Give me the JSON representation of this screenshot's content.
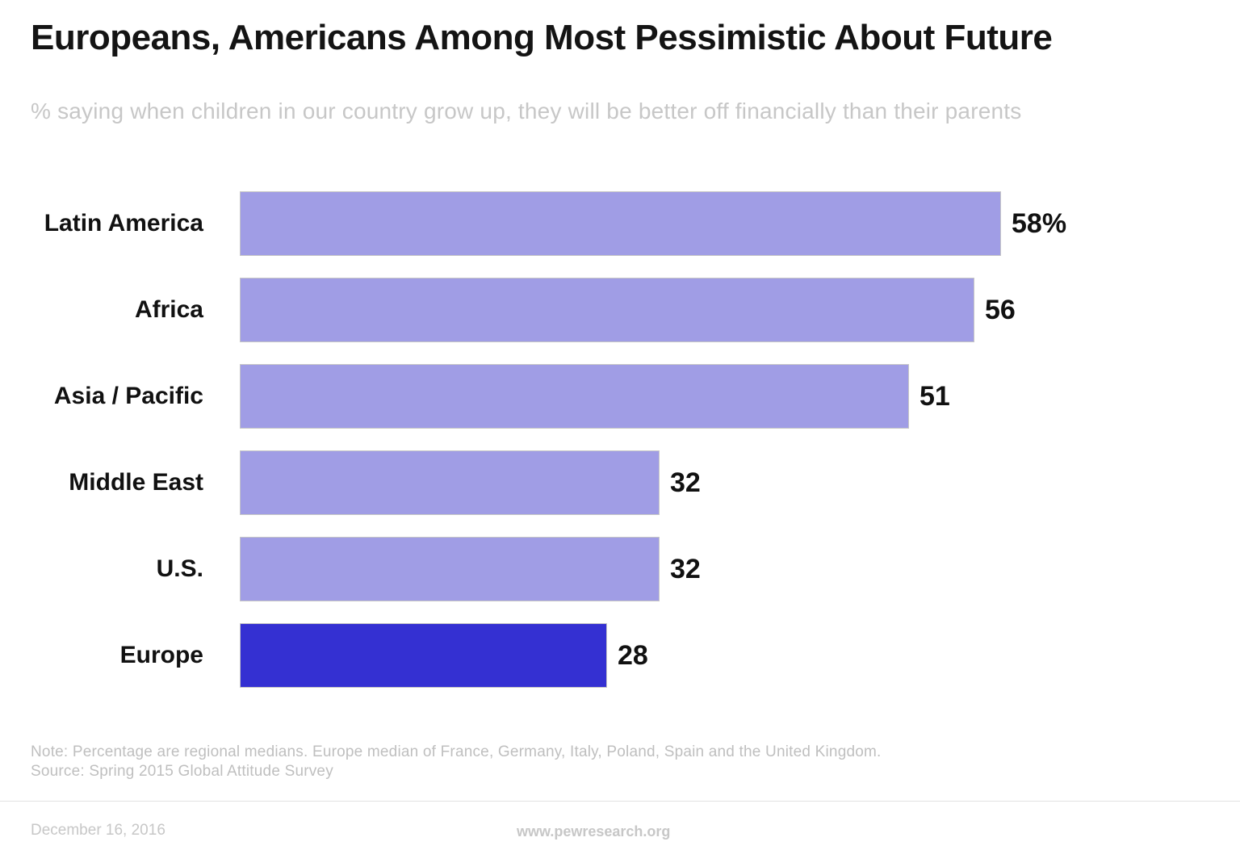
{
  "title": "Europeans, Americans Among Most Pessimistic About Future",
  "subtitle": "% saying when children in our country grow up, they will be better off financially than their parents",
  "chart_data": {
    "type": "bar",
    "orientation": "horizontal",
    "categories": [
      "Latin America",
      "Africa",
      "Asia / Pacific",
      "Middle East",
      "U.S.",
      "Europe"
    ],
    "values": [
      58,
      56,
      51,
      32,
      32,
      28
    ],
    "value_labels": [
      "58%",
      "56",
      "51",
      "32",
      "32",
      "28"
    ],
    "highlight_index": 5,
    "xlim": [
      0,
      60
    ],
    "grid": false,
    "legend": "none",
    "title": "Europeans, Americans Among Most Pessimistic About Future",
    "xlabel": "",
    "ylabel": ""
  },
  "note": {
    "line1": "Note: Percentage are regional medians. Europe median of France, Germany, Italy, Poland, Spain and the United Kingdom.",
    "line2": "Source: Spring 2015 Global Attitude Survey"
  },
  "footer": {
    "date": "December 16, 2016",
    "url": "www.pewresearch.org"
  },
  "colors": {
    "bar_light": "#a09de5",
    "bar_highlight": "#3430d2",
    "bar_border": "#c6c6c6",
    "text_dark": "#111111",
    "text_muted": "#c7c7c7"
  }
}
